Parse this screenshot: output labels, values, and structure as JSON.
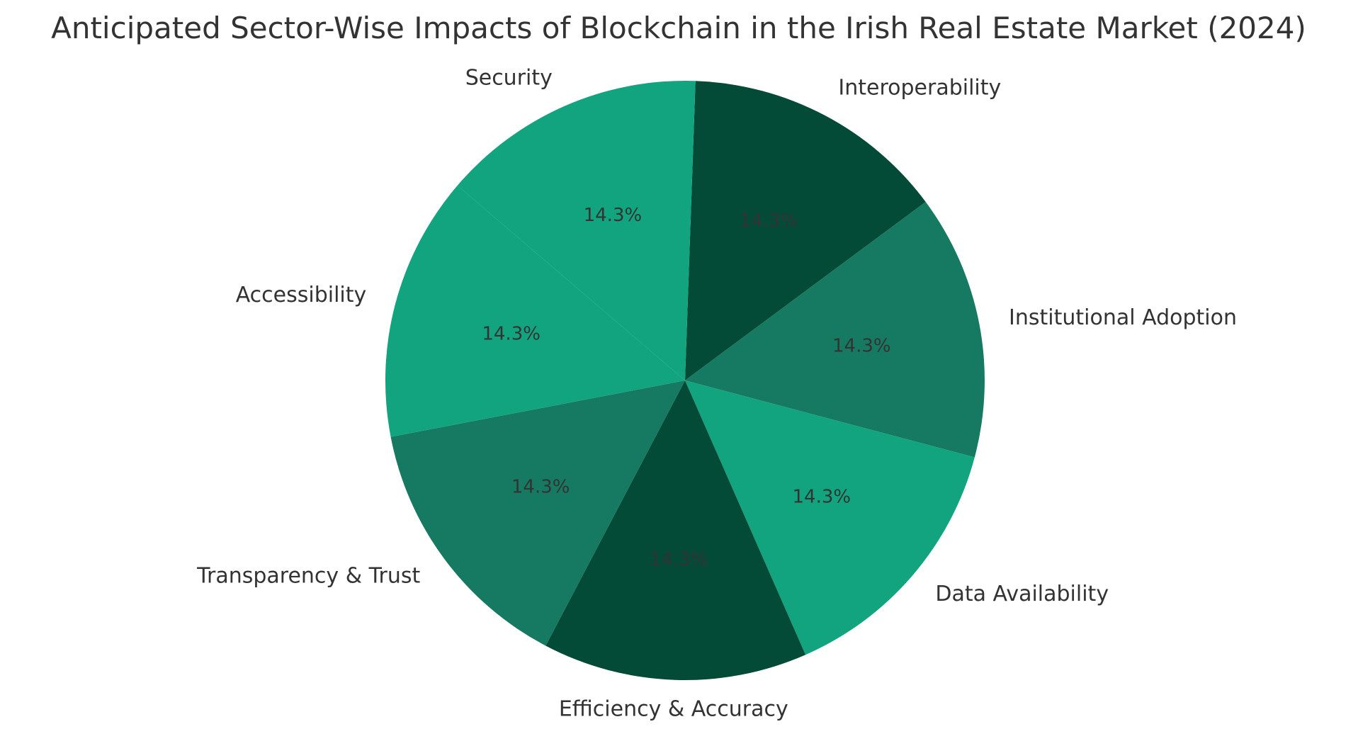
{
  "chart_data": {
    "type": "pie",
    "title": "Anticipated Sector-Wise Impacts of Blockchain in the Irish Real Estate Market (2024)",
    "start_angle_deg": 88,
    "direction": "clockwise",
    "slices": [
      {
        "label": "Interoperability",
        "value": 14.3,
        "pct_text": "14.3%",
        "color": "#034a37"
      },
      {
        "label": "Institutional Adoption",
        "value": 14.3,
        "pct_text": "14.3%",
        "color": "#167a62"
      },
      {
        "label": "Data Availability",
        "value": 14.3,
        "pct_text": "14.3%",
        "color": "#11a47f"
      },
      {
        "label": "Efficiency & Accuracy",
        "value": 14.3,
        "pct_text": "14.3%",
        "color": "#034a37"
      },
      {
        "label": "Transparency & Trust",
        "value": 14.3,
        "pct_text": "14.3%",
        "color": "#167a62"
      },
      {
        "label": "Accessibility",
        "value": 14.3,
        "pct_text": "14.3%",
        "color": "#11a47f"
      },
      {
        "label": "Security",
        "value": 14.3,
        "pct_text": "14.3%",
        "color": "#11a47f"
      }
    ]
  }
}
